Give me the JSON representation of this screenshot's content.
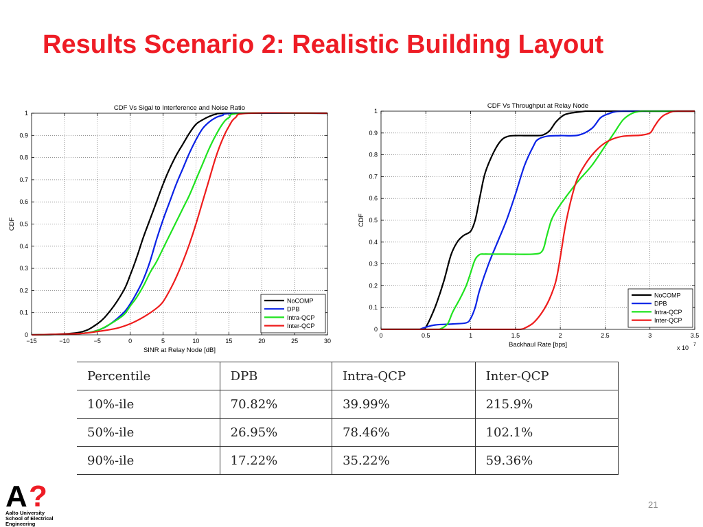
{
  "slide": {
    "title": "Results Scenario 2: Realistic Building Layout",
    "page_number": "21"
  },
  "logo": {
    "mark_a": "A",
    "mark_q": "?",
    "lines": [
      "Aalto University",
      "School of Electrical",
      "Engineering"
    ]
  },
  "colors": {
    "title": "#ee1c25",
    "NoCOMP": "#000000",
    "DPB": "#0a22e6",
    "Intra-QCP": "#1fe31f",
    "Inter-QCP": "#ee1c1c"
  },
  "chart_data": [
    {
      "type": "line",
      "title": "CDF Vs Sigal to Interference and Noise Ratio",
      "xlabel": "SINR at Relay Node [dB]",
      "ylabel": "CDF",
      "xlim": [
        -15,
        30
      ],
      "ylim": [
        0,
        1
      ],
      "xticks": [
        -15,
        -10,
        -5,
        0,
        5,
        10,
        15,
        20,
        25,
        30
      ],
      "xtick_labels": [
        "−15",
        "−10",
        "−5",
        "0",
        "5",
        "10",
        "15",
        "20",
        "25",
        "30"
      ],
      "yticks": [
        0,
        0.1,
        0.2,
        0.3,
        0.4,
        0.5,
        0.6,
        0.7,
        0.8,
        0.9,
        1
      ],
      "ytick_labels": [
        "0",
        "0.1",
        "0.2",
        "0.3",
        "0.4",
        "0.5",
        "0.6",
        "0.7",
        "0.8",
        "0.9",
        "1"
      ],
      "grid": true,
      "legend": "bottom-right",
      "series": [
        {
          "name": "NoCOMP",
          "x": [
            -15,
            -8,
            -5,
            -3,
            -1,
            0,
            1,
            2,
            3,
            4,
            5,
            6,
            7,
            8,
            9,
            10,
            11,
            12,
            13,
            15,
            30
          ],
          "y": [
            0,
            0.01,
            0.05,
            0.11,
            0.2,
            0.27,
            0.35,
            0.44,
            0.52,
            0.6,
            0.68,
            0.75,
            0.81,
            0.86,
            0.91,
            0.95,
            0.97,
            0.985,
            0.995,
            1,
            1
          ]
        },
        {
          "name": "DPB",
          "x": [
            -15,
            -8,
            -5,
            -3,
            -1,
            0,
            1,
            2,
            3,
            4,
            5,
            6,
            7,
            8,
            9,
            10,
            11,
            12,
            13,
            14,
            16,
            30
          ],
          "y": [
            0,
            0.005,
            0.02,
            0.05,
            0.1,
            0.14,
            0.19,
            0.25,
            0.33,
            0.43,
            0.52,
            0.6,
            0.68,
            0.75,
            0.82,
            0.88,
            0.93,
            0.96,
            0.98,
            0.99,
            1,
            1
          ]
        },
        {
          "name": "Intra-QCP",
          "x": [
            -15,
            -8,
            -5,
            -3,
            -1,
            0,
            1,
            2,
            3,
            4,
            5,
            6,
            7,
            8,
            9,
            10,
            11,
            12,
            13,
            14,
            15,
            17,
            30
          ],
          "y": [
            0,
            0.005,
            0.02,
            0.05,
            0.09,
            0.13,
            0.17,
            0.22,
            0.28,
            0.33,
            0.39,
            0.45,
            0.51,
            0.57,
            0.63,
            0.7,
            0.77,
            0.84,
            0.9,
            0.95,
            0.98,
            1,
            1
          ]
        },
        {
          "name": "Inter-QCP",
          "x": [
            -15,
            -8,
            -5,
            -2,
            0,
            2,
            4,
            5,
            6,
            7,
            8,
            9,
            10,
            11,
            12,
            13,
            14,
            15,
            16,
            18,
            30
          ],
          "y": [
            0,
            0.005,
            0.015,
            0.03,
            0.05,
            0.08,
            0.12,
            0.15,
            0.2,
            0.26,
            0.33,
            0.41,
            0.5,
            0.6,
            0.7,
            0.8,
            0.88,
            0.94,
            0.98,
            1,
            1
          ]
        }
      ]
    },
    {
      "type": "line",
      "title": "CDF Vs Throughput at Relay Node",
      "xlabel": "Backhaul Rate [bps]",
      "ylabel": "CDF",
      "x_multiplier": "x 10",
      "x_multiplier_exponent": "7",
      "xlim": [
        0,
        3.5
      ],
      "ylim": [
        0,
        1
      ],
      "xticks": [
        0,
        0.5,
        1,
        1.5,
        2,
        2.5,
        3,
        3.5
      ],
      "xtick_labels": [
        "0",
        "0.5",
        "1",
        "1.5",
        "2",
        "2.5",
        "3",
        "3.5"
      ],
      "yticks": [
        0,
        0.1,
        0.2,
        0.3,
        0.4,
        0.5,
        0.6,
        0.7,
        0.8,
        0.9,
        1
      ],
      "ytick_labels": [
        "0",
        "0.1",
        "0.2",
        "0.3",
        "0.4",
        "0.5",
        "0.6",
        "0.7",
        "0.8",
        "0.9",
        "1"
      ],
      "grid": true,
      "legend": "bottom-right",
      "series": [
        {
          "name": "NoCOMP",
          "x": [
            0.47,
            0.5,
            0.55,
            0.62,
            0.7,
            0.78,
            0.85,
            0.92,
            1.0,
            1.05,
            1.1,
            1.15,
            1.2,
            1.28,
            1.35,
            1.42,
            1.5,
            1.6,
            1.7,
            1.8,
            1.88,
            1.95,
            2.03,
            2.1,
            2.18,
            2.28
          ],
          "y": [
            0,
            0.01,
            0.05,
            0.12,
            0.22,
            0.34,
            0.4,
            0.43,
            0.45,
            0.5,
            0.6,
            0.7,
            0.76,
            0.83,
            0.87,
            0.885,
            0.888,
            0.888,
            0.888,
            0.89,
            0.91,
            0.95,
            0.98,
            0.99,
            0.995,
            1
          ]
        },
        {
          "name": "DPB",
          "x": [
            0.43,
            0.5,
            0.6,
            0.8,
            0.95,
            1.0,
            1.05,
            1.1,
            1.2,
            1.3,
            1.4,
            1.5,
            1.6,
            1.7,
            1.75,
            1.85,
            2.0,
            2.2,
            2.35,
            2.45,
            2.55,
            2.62,
            2.7
          ],
          "y": [
            0,
            0.01,
            0.02,
            0.025,
            0.03,
            0.05,
            0.1,
            0.18,
            0.3,
            0.4,
            0.5,
            0.62,
            0.75,
            0.84,
            0.87,
            0.885,
            0.888,
            0.89,
            0.92,
            0.97,
            0.99,
            0.998,
            1
          ]
        },
        {
          "name": "Intra-QCP",
          "x": [
            0.65,
            0.7,
            0.75,
            0.8,
            0.88,
            0.95,
            1.0,
            1.05,
            1.1,
            1.15,
            1.2,
            1.4,
            1.7,
            1.8,
            1.85,
            1.9,
            1.95,
            2.05,
            2.2,
            2.35,
            2.5,
            2.6,
            2.7,
            2.8,
            2.9,
            3.0
          ],
          "y": [
            0,
            0.01,
            0.03,
            0.08,
            0.14,
            0.2,
            0.26,
            0.32,
            0.343,
            0.345,
            0.345,
            0.345,
            0.345,
            0.36,
            0.43,
            0.5,
            0.54,
            0.6,
            0.68,
            0.75,
            0.84,
            0.9,
            0.96,
            0.99,
            1,
            1
          ]
        },
        {
          "name": "Inter-QCP",
          "x": [
            1.55,
            1.6,
            1.7,
            1.8,
            1.88,
            1.95,
            2.0,
            2.05,
            2.1,
            2.15,
            2.2,
            2.3,
            2.4,
            2.5,
            2.6,
            2.7,
            2.8,
            2.9,
            3.0,
            3.05,
            3.1,
            3.15,
            3.2,
            3.25,
            3.3,
            3.35
          ],
          "y": [
            0,
            0.005,
            0.03,
            0.08,
            0.14,
            0.22,
            0.33,
            0.46,
            0.56,
            0.64,
            0.7,
            0.77,
            0.82,
            0.855,
            0.875,
            0.885,
            0.888,
            0.89,
            0.9,
            0.93,
            0.96,
            0.98,
            0.99,
            0.998,
            1,
            1
          ]
        }
      ]
    }
  ],
  "table": {
    "headers": [
      "Percentile",
      "DPB",
      "Intra-QCP",
      "Inter-QCP"
    ],
    "rows": [
      [
        "10%-ile",
        "70.82%",
        "39.99%",
        "215.9%"
      ],
      [
        "50%-ile",
        "26.95%",
        "78.46%",
        "102.1%"
      ],
      [
        "90%-ile",
        "17.22%",
        "35.22%",
        "59.36%"
      ]
    ]
  }
}
